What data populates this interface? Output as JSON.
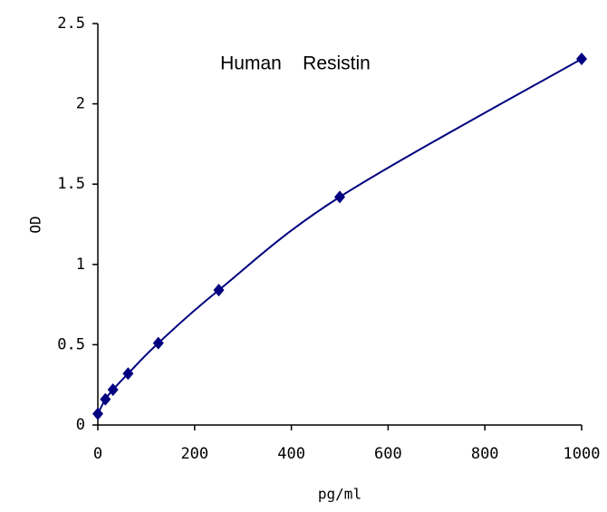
{
  "chart_data": {
    "type": "scatter",
    "title": "Human    Resistin",
    "xlabel": "pg/ml",
    "ylabel": "OD",
    "x": [
      0,
      15.6,
      31.25,
      62.5,
      125,
      250,
      500,
      1000
    ],
    "series": [
      {
        "name": "OD",
        "color": "#000080",
        "values": [
          0.07,
          0.16,
          0.22,
          0.32,
          0.51,
          0.84,
          1.42,
          2.28
        ]
      }
    ],
    "xlim": [
      0,
      1000
    ],
    "xticks": [
      0,
      200,
      400,
      600,
      800,
      1000
    ],
    "ylim": [
      0,
      2.5
    ],
    "yticks": [
      0,
      0.5,
      1,
      1.5,
      2,
      2.5
    ],
    "smooth": true
  }
}
